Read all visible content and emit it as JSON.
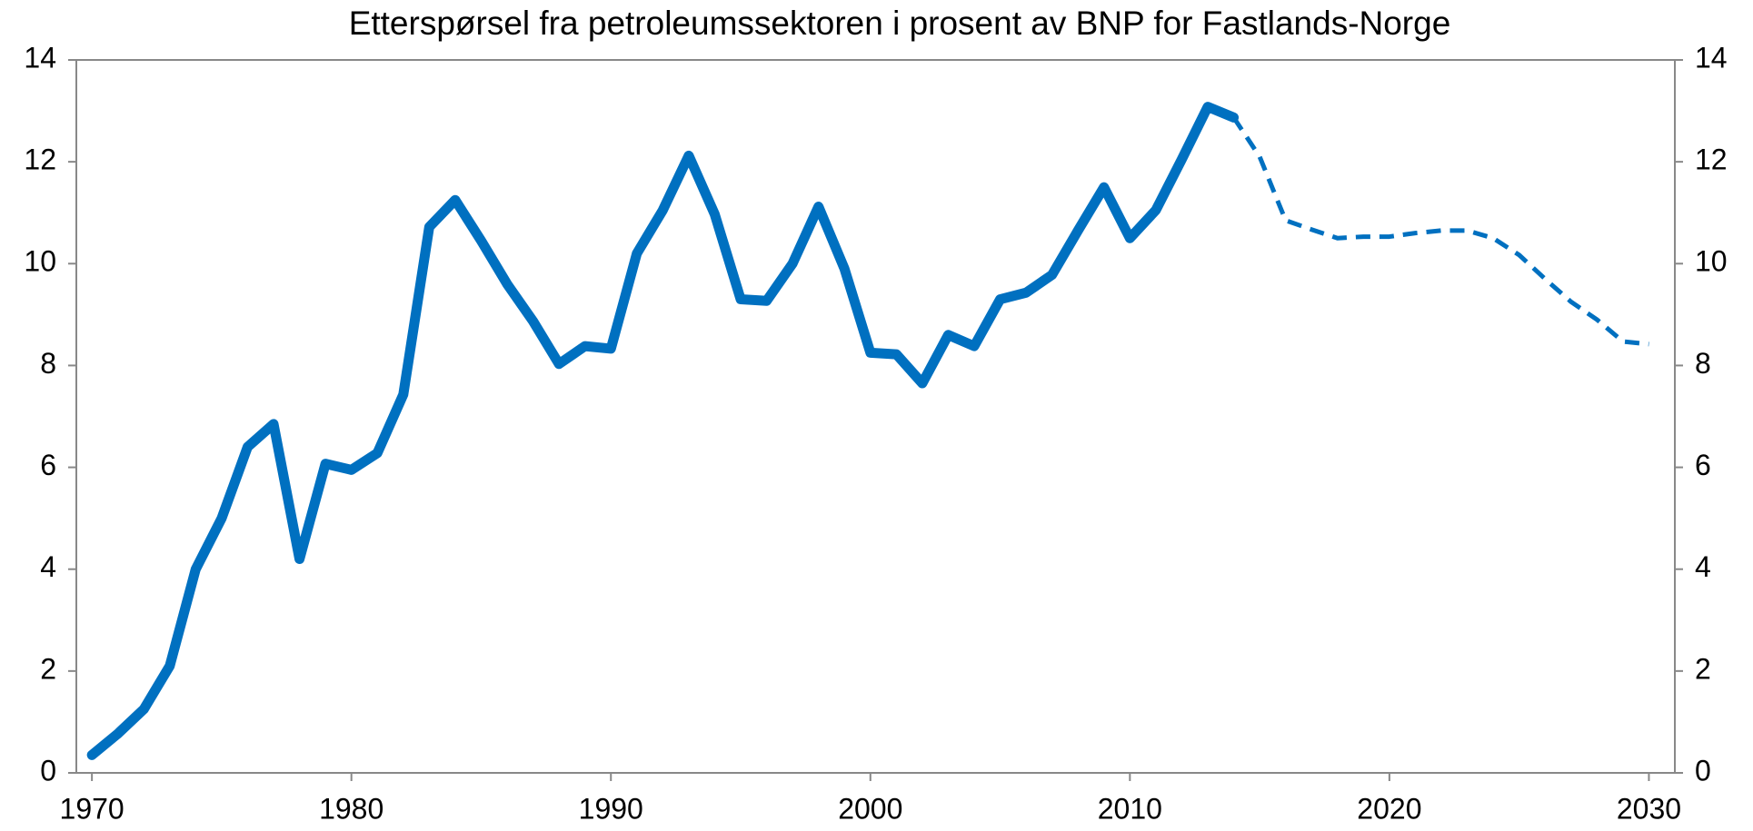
{
  "chart_data": {
    "type": "line",
    "title": "Etterspørsel fra petroleumssektoren i prosent av BNP for Fastlands-Norge",
    "x": [
      1970,
      1971,
      1972,
      1973,
      1974,
      1975,
      1976,
      1977,
      1978,
      1979,
      1980,
      1981,
      1982,
      1983,
      1984,
      1985,
      1986,
      1987,
      1988,
      1989,
      1990,
      1991,
      1992,
      1993,
      1994,
      1995,
      1996,
      1997,
      1998,
      1999,
      2000,
      2001,
      2002,
      2003,
      2004,
      2005,
      2006,
      2007,
      2008,
      2009,
      2010,
      2011,
      2012,
      2013,
      2014,
      2015,
      2016,
      2017,
      2018,
      2019,
      2020,
      2021,
      2022,
      2023,
      2024,
      2025,
      2026,
      2027,
      2028,
      2029,
      2030
    ],
    "series": [
      {
        "color": "#0070c0",
        "dashed": false,
        "values": [
          0.35,
          0.77,
          1.25,
          2.1,
          4.0,
          5.0,
          6.4,
          6.85,
          4.2,
          6.07,
          5.95,
          6.28,
          7.43,
          10.72,
          11.25,
          10.45,
          9.6,
          8.87,
          8.03,
          8.38,
          8.33,
          10.2,
          11.05,
          12.12,
          10.97,
          9.3,
          9.27,
          10.0,
          11.12,
          9.9,
          8.25,
          8.22,
          7.65,
          8.6,
          8.38,
          9.3,
          9.43,
          9.78,
          10.65,
          11.5,
          10.5,
          11.05,
          12.05,
          13.08,
          12.87,
          null,
          null,
          null,
          null,
          null,
          null,
          null,
          null,
          null,
          null,
          null,
          null,
          null,
          null,
          null,
          null
        ]
      },
      {
        "color": "#0070c0",
        "dashed": true,
        "values": [
          null,
          null,
          null,
          null,
          null,
          null,
          null,
          null,
          null,
          null,
          null,
          null,
          null,
          null,
          null,
          null,
          null,
          null,
          null,
          null,
          null,
          null,
          null,
          null,
          null,
          null,
          null,
          null,
          null,
          null,
          null,
          null,
          null,
          null,
          null,
          null,
          null,
          null,
          null,
          null,
          null,
          null,
          null,
          null,
          12.87,
          12.1,
          10.85,
          10.67,
          10.5,
          10.53,
          10.53,
          10.6,
          10.65,
          10.65,
          10.5,
          10.17,
          9.7,
          9.25,
          8.9,
          8.47,
          8.42
        ]
      }
    ],
    "xlim": [
      1969.4,
      2031
    ],
    "xticks": [
      1970,
      1980,
      1990,
      2000,
      2010,
      2020,
      2030
    ],
    "ylim": [
      0,
      14
    ],
    "yticks": [
      0,
      2,
      4,
      6,
      8,
      10,
      12,
      14
    ],
    "y2lim": [
      0,
      14
    ],
    "y2ticks": [
      0,
      2,
      4,
      6,
      8,
      10,
      12,
      14
    ],
    "grid": false
  }
}
